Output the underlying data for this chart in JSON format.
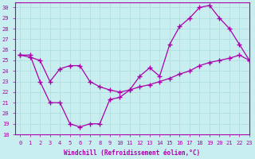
{
  "line1_x": [
    0,
    1,
    2,
    3,
    4,
    5,
    6,
    7,
    8,
    9,
    10,
    11,
    12,
    13,
    14,
    15,
    16,
    17,
    18,
    19,
    20,
    21,
    22,
    23
  ],
  "line1_y": [
    25.5,
    25.5,
    23.0,
    21.0,
    21.0,
    19.0,
    18.7,
    19.0,
    19.0,
    21.3,
    21.5,
    22.2,
    23.5,
    24.3,
    23.5,
    26.5,
    28.2,
    29.0,
    30.0,
    30.2,
    29.0,
    28.0,
    26.5,
    25.0
  ],
  "line2_x": [
    0,
    1,
    2,
    3,
    4,
    5,
    6,
    7,
    8,
    9,
    10,
    11,
    12,
    13,
    14,
    15,
    16,
    17,
    18,
    19,
    20,
    21,
    22,
    23
  ],
  "line2_y": [
    25.5,
    25.3,
    25.0,
    23.0,
    24.2,
    24.5,
    24.5,
    23.0,
    22.5,
    22.2,
    22.0,
    22.2,
    22.5,
    22.7,
    23.0,
    23.3,
    23.7,
    24.0,
    24.5,
    24.8,
    25.0,
    25.2,
    25.5,
    25.0
  ],
  "color": "#aa00aa",
  "background_color": "#c8eef0",
  "xlabel": "Windchill (Refroidissement éolien,°C)",
  "xlim": [
    -0.5,
    23
  ],
  "ylim": [
    18,
    30.5
  ],
  "yticks": [
    18,
    19,
    20,
    21,
    22,
    23,
    24,
    25,
    26,
    27,
    28,
    29,
    30
  ],
  "xticks": [
    0,
    1,
    2,
    3,
    4,
    5,
    6,
    7,
    8,
    9,
    10,
    11,
    12,
    13,
    14,
    15,
    16,
    17,
    18,
    19,
    20,
    21,
    22,
    23
  ],
  "grid_color": "#b0dfe0",
  "marker": "+",
  "markersize": 4,
  "linewidth": 0.9,
  "tick_fontsize": 5.0,
  "xlabel_fontsize": 5.5
}
